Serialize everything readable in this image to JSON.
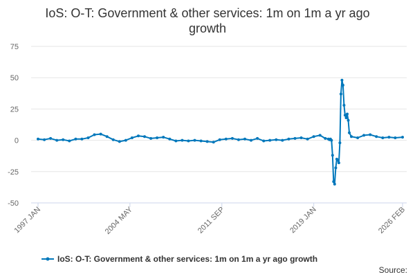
{
  "chart_data": {
    "type": "line",
    "title_line1": "IoS: O-T: Government & other services: 1m on 1m a yr ago",
    "title_line2": "growth",
    "xlabel": "",
    "ylabel": "",
    "ylim": [
      -50,
      75
    ],
    "yticks": [
      "75",
      "50",
      "25",
      "0",
      "-25",
      "-50"
    ],
    "xlim": [
      "1997 JAN",
      "2026 FEB"
    ],
    "xticks": [
      "1997 JAN",
      "2004 MAY",
      "2011 SEP",
      "2019 JAN",
      "2026 FEB"
    ],
    "grid": "horizontal",
    "legend_position": "bottom",
    "line_color": "#0077bb",
    "series": [
      {
        "name": "IoS: O-T: Government & other services: 1m on 1m a yr ago growth",
        "x": [
          "1997 JAN",
          "1997 JUL",
          "1998 JAN",
          "1998 JUL",
          "1999 JAN",
          "1999 JUL",
          "2000 JAN",
          "2000 JUL",
          "2001 JAN",
          "2001 JUL",
          "2002 JAN",
          "2002 JUL",
          "2003 JAN",
          "2003 JUL",
          "2004 JAN",
          "2004 JUL",
          "2005 JAN",
          "2005 JUL",
          "2006 JAN",
          "2006 JUL",
          "2007 JAN",
          "2007 JUL",
          "2008 JAN",
          "2008 JUL",
          "2009 JAN",
          "2009 JUL",
          "2010 JAN",
          "2010 JUL",
          "2011 JAN",
          "2011 JUL",
          "2012 JAN",
          "2012 JUL",
          "2013 JAN",
          "2013 JUL",
          "2014 JAN",
          "2014 JUL",
          "2015 JAN",
          "2015 JUL",
          "2016 JAN",
          "2016 JUL",
          "2017 JAN",
          "2017 JUL",
          "2018 JAN",
          "2018 JUL",
          "2019 JAN",
          "2019 JUL",
          "2019 DEC",
          "2020 MAR",
          "2020 APR",
          "2020 MAY",
          "2020 JUN",
          "2020 JUL",
          "2020 AUG",
          "2020 SEP",
          "2020 OCT",
          "2020 NOV",
          "2020 DEC",
          "2021 JAN",
          "2021 FEB",
          "2021 MAR",
          "2021 APR",
          "2021 MAY",
          "2021 JUN",
          "2021 JUL",
          "2021 AUG",
          "2021 SEP",
          "2021 OCT",
          "2021 NOV",
          "2022 JAN",
          "2022 JUL",
          "2023 JAN",
          "2023 JUL",
          "2024 JAN",
          "2024 JUL",
          "2025 JAN",
          "2025 JUL",
          "2026 FEB"
        ],
        "values": [
          1,
          0.5,
          1.5,
          0,
          0.5,
          -0.5,
          1,
          1,
          2,
          4.5,
          5,
          3,
          0.5,
          -1,
          0,
          2,
          3.5,
          3,
          1.5,
          2,
          2.5,
          1,
          -0.5,
          0,
          -0.5,
          0,
          -0.5,
          -1,
          -1.5,
          0.5,
          1,
          1.5,
          0.5,
          1,
          0,
          1.5,
          -0.5,
          0,
          0.5,
          0,
          1,
          1.5,
          2,
          1,
          3,
          4,
          1.5,
          1,
          0.5,
          1,
          0,
          -12,
          -33,
          -35,
          -22,
          -15,
          -16,
          -18,
          -2,
          37,
          48,
          44,
          28,
          20,
          18,
          21,
          16,
          6,
          3,
          2,
          4,
          4.5,
          3,
          2,
          2.5,
          2,
          2.5
        ]
      }
    ],
    "legend": "IoS: O-T: Government & other services: 1m on 1m a yr ago growth",
    "source_label": "Source:"
  }
}
